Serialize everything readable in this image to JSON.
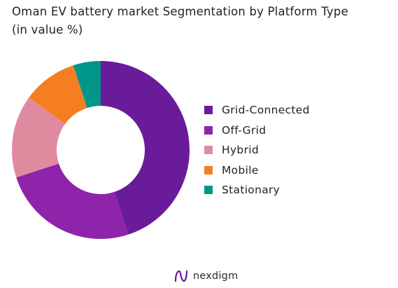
{
  "title_line1": "Oman EV battery market Segmentation by Platform Type",
  "title_line2": "(in value %)",
  "chart_data": {
    "type": "pie",
    "title": "Oman EV battery market Segmentation by Platform Type (in value %)",
    "donut": true,
    "start_angle_deg": 0,
    "direction": "clockwise",
    "categories": [
      "Grid-Connected",
      "Off-Grid",
      "Hybrid",
      "Mobile",
      "Stationary"
    ],
    "values": [
      45,
      25,
      15,
      10,
      5
    ],
    "colors": [
      "#6a1b9a",
      "#8e24aa",
      "#e08aa0",
      "#f57f20",
      "#00968a"
    ],
    "legend_position": "right"
  },
  "legend": [
    {
      "label": "Grid-Connected",
      "color": "#6a1b9a"
    },
    {
      "label": "Off-Grid",
      "color": "#8e24aa"
    },
    {
      "label": "Hybrid",
      "color": "#e08aa0"
    },
    {
      "label": "Mobile",
      "color": "#f57f20"
    },
    {
      "label": "Stationary",
      "color": "#00968a"
    }
  ],
  "brand": {
    "name": "nexdigm",
    "logo_icon": "nexdigm-logo-icon",
    "logo_color": "#6a1b9a"
  }
}
